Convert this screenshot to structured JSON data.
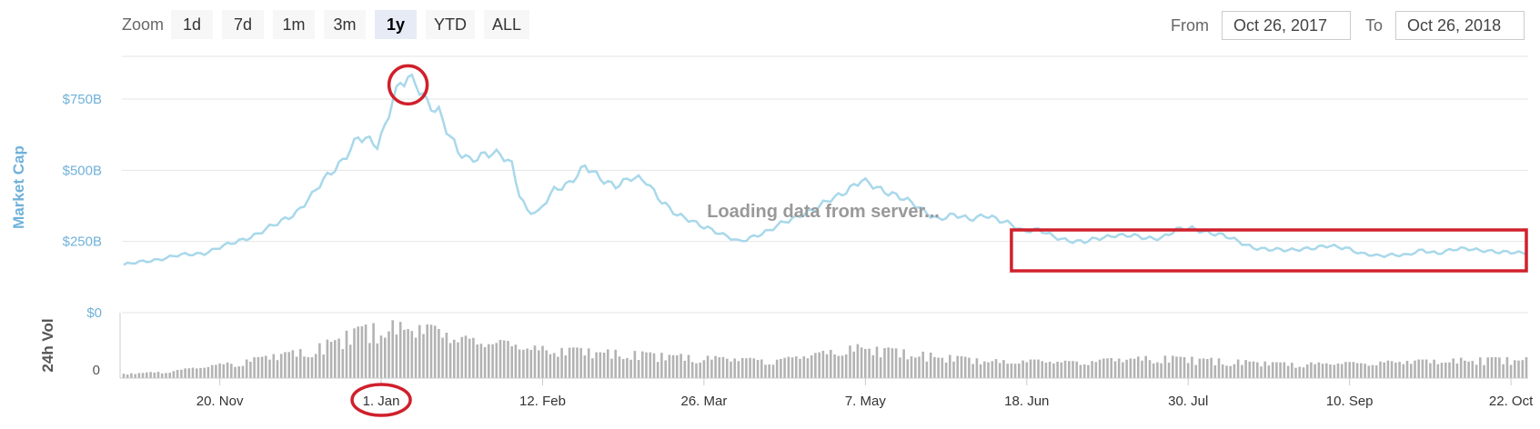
{
  "zoom": {
    "label": "Zoom",
    "buttons": [
      "1d",
      "7d",
      "1m",
      "3m",
      "1y",
      "YTD",
      "ALL"
    ],
    "active": "1y"
  },
  "range": {
    "from_label": "From",
    "from_value": "Oct 26, 2017",
    "to_label": "To",
    "to_value": "Oct 26, 2018"
  },
  "loading_text": "Loading data from server...",
  "colors": {
    "line": "#a8d8ea",
    "volume": "#b3b3b3",
    "annotation": "#d0202b",
    "axis_label": "#6fb1d9"
  },
  "chart_data": {
    "type": "line",
    "title": "",
    "ylabel": "Market Cap",
    "y_ticks": [
      "$0",
      "$250B",
      "$500B",
      "$750B"
    ],
    "ylim": [
      0,
      900
    ],
    "x_ticks": [
      "20. Nov",
      "1. Jan",
      "12. Feb",
      "26. Mar",
      "7. May",
      "18. Jun",
      "30. Jul",
      "10. Sep",
      "22. Oct"
    ],
    "x_tick_days": [
      25,
      67,
      109,
      151,
      193,
      235,
      277,
      319,
      361
    ],
    "series": [
      {
        "values": [
          [
            0,
            168
          ],
          [
            7,
            183
          ],
          [
            14,
            200
          ],
          [
            21,
            210
          ],
          [
            28,
            242
          ],
          [
            35,
            278
          ],
          [
            40,
            312
          ],
          [
            45,
            355
          ],
          [
            49,
            410
          ],
          [
            53,
            480
          ],
          [
            57,
            540
          ],
          [
            61,
            610
          ],
          [
            64,
            600
          ],
          [
            66,
            590
          ],
          [
            68,
            660
          ],
          [
            70,
            755
          ],
          [
            72,
            800
          ],
          [
            74,
            815
          ],
          [
            76,
            800
          ],
          [
            79,
            745
          ],
          [
            82,
            710
          ],
          [
            84,
            640
          ],
          [
            87,
            560
          ],
          [
            90,
            540
          ],
          [
            94,
            560
          ],
          [
            98,
            550
          ],
          [
            101,
            520
          ],
          [
            103,
            420
          ],
          [
            105,
            360
          ],
          [
            108,
            350
          ],
          [
            112,
            430
          ],
          [
            116,
            460
          ],
          [
            120,
            510
          ],
          [
            124,
            470
          ],
          [
            128,
            450
          ],
          [
            132,
            470
          ],
          [
            136,
            460
          ],
          [
            140,
            395
          ],
          [
            144,
            340
          ],
          [
            148,
            320
          ],
          [
            152,
            300
          ],
          [
            156,
            270
          ],
          [
            160,
            250
          ],
          [
            164,
            270
          ],
          [
            168,
            285
          ],
          [
            172,
            320
          ],
          [
            176,
            345
          ],
          [
            180,
            360
          ],
          [
            184,
            400
          ],
          [
            188,
            430
          ],
          [
            192,
            460
          ],
          [
            196,
            440
          ],
          [
            200,
            420
          ],
          [
            204,
            390
          ],
          [
            208,
            360
          ],
          [
            212,
            330
          ],
          [
            216,
            340
          ],
          [
            220,
            330
          ],
          [
            224,
            345
          ],
          [
            228,
            320
          ],
          [
            231,
            310
          ],
          [
            234,
            290
          ],
          [
            238,
            290
          ],
          [
            242,
            265
          ],
          [
            246,
            255
          ],
          [
            250,
            248
          ],
          [
            254,
            260
          ],
          [
            258,
            275
          ],
          [
            262,
            270
          ],
          [
            266,
            260
          ],
          [
            270,
            265
          ],
          [
            274,
            290
          ],
          [
            278,
            295
          ],
          [
            282,
            285
          ],
          [
            286,
            270
          ],
          [
            290,
            250
          ],
          [
            294,
            230
          ],
          [
            298,
            220
          ],
          [
            302,
            220
          ],
          [
            306,
            225
          ],
          [
            310,
            225
          ],
          [
            314,
            235
          ],
          [
            318,
            230
          ],
          [
            322,
            205
          ],
          [
            326,
            200
          ],
          [
            330,
            205
          ],
          [
            334,
            200
          ],
          [
            338,
            220
          ],
          [
            342,
            210
          ],
          [
            346,
            220
          ],
          [
            350,
            225
          ],
          [
            354,
            220
          ],
          [
            358,
            210
          ],
          [
            362,
            212
          ],
          [
            365,
            212
          ]
        ]
      }
    ],
    "volume": {
      "ylabel": "24h Vol",
      "y_ticks": [
        "0"
      ],
      "values": [
        [
          0,
          2
        ],
        [
          10,
          3
        ],
        [
          20,
          5
        ],
        [
          30,
          8
        ],
        [
          40,
          11
        ],
        [
          48,
          13
        ],
        [
          55,
          18
        ],
        [
          60,
          22
        ],
        [
          65,
          24
        ],
        [
          70,
          25
        ],
        [
          75,
          24
        ],
        [
          80,
          23
        ],
        [
          85,
          21
        ],
        [
          90,
          19
        ],
        [
          95,
          17
        ],
        [
          100,
          16
        ],
        [
          105,
          15
        ],
        [
          110,
          14
        ],
        [
          120,
          13
        ],
        [
          130,
          12
        ],
        [
          140,
          11
        ],
        [
          150,
          10
        ],
        [
          160,
          9
        ],
        [
          170,
          9
        ],
        [
          180,
          11
        ],
        [
          190,
          15
        ],
        [
          200,
          13
        ],
        [
          210,
          11
        ],
        [
          220,
          9
        ],
        [
          230,
          8
        ],
        [
          240,
          8
        ],
        [
          250,
          8
        ],
        [
          260,
          9
        ],
        [
          270,
          10
        ],
        [
          280,
          9
        ],
        [
          290,
          8
        ],
        [
          300,
          7
        ],
        [
          310,
          7
        ],
        [
          320,
          7
        ],
        [
          330,
          8
        ],
        [
          340,
          8
        ],
        [
          350,
          9
        ],
        [
          360,
          9
        ],
        [
          365,
          9
        ]
      ],
      "ylim": [
        0,
        32
      ]
    },
    "annotations": [
      {
        "type": "circle",
        "target": "peak"
      },
      {
        "type": "circle",
        "target": "x-tick 1. Jan"
      },
      {
        "type": "rectangle",
        "target": "line from 18. Jun to 22. Oct"
      }
    ]
  }
}
